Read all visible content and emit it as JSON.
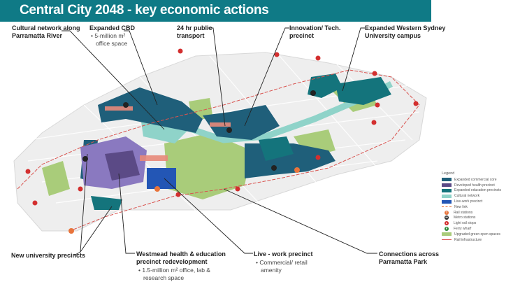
{
  "title": "Central City 2048 - key economic actions",
  "callouts": {
    "cultural": {
      "title_l1": "Cultural network along",
      "title_l2": "Parramatta River"
    },
    "cbd": {
      "title": "Expanded CBD",
      "bullet_l1": "• 5-million m² ",
      "bullet_l2": "office space"
    },
    "transport": {
      "title_l1": "24 hr public",
      "title_l2": "transport"
    },
    "innovation": {
      "title_l1": "Innovation/ Tech.",
      "title_l2": "precinct"
    },
    "wsu": {
      "title_l1": "Expanded Western Sydney",
      "title_l2": "University campus"
    },
    "university": {
      "title": "New university precincts"
    },
    "westmead": {
      "title_l1": "Westmead health & education",
      "title_l2": "precinct redevelopment",
      "bullet_l1": "• 1.5-million m² office, lab &",
      "bullet_l2": "research space"
    },
    "livework": {
      "title": "Live - work precinct",
      "bullet_l1": "• Commercial/ retail",
      "bullet_l2": "amenity"
    },
    "park": {
      "title_l1": "Connections across",
      "title_l2": "Parramatta Park"
    }
  },
  "legend": {
    "title": "Legend",
    "items": [
      {
        "label": "Expanded commercial core",
        "type": "swatch",
        "color": "#1f5f7a"
      },
      {
        "label": "Developed health precinct",
        "type": "swatch",
        "color": "#5b4a86"
      },
      {
        "label": "Expanded education precincts",
        "type": "swatch",
        "color": "#14747c"
      },
      {
        "label": "Cultural network",
        "type": "swatch",
        "color": "#8fd3c9"
      },
      {
        "label": "Live-work precinct",
        "type": "swatch",
        "color": "#2356b5"
      },
      {
        "label": "New link",
        "type": "dashed",
        "color": "#e8743b"
      },
      {
        "label": "Rail stations",
        "type": "circle",
        "color": "#e8743b",
        "glyph": "T"
      },
      {
        "label": "Metro stations",
        "type": "circle",
        "color": "#222222",
        "glyph": "M"
      },
      {
        "label": "Light rail stops",
        "type": "circle",
        "color": "#d32f2f",
        "glyph": "L"
      },
      {
        "label": "Ferry wharf",
        "type": "circle",
        "color": "#2e8b3a",
        "glyph": "F"
      },
      {
        "label": "Upgraded green open spaces",
        "type": "swatch",
        "color": "#a9cc7a"
      },
      {
        "label": "Rail infrastructure",
        "type": "line",
        "color": "#d9534f"
      }
    ]
  }
}
